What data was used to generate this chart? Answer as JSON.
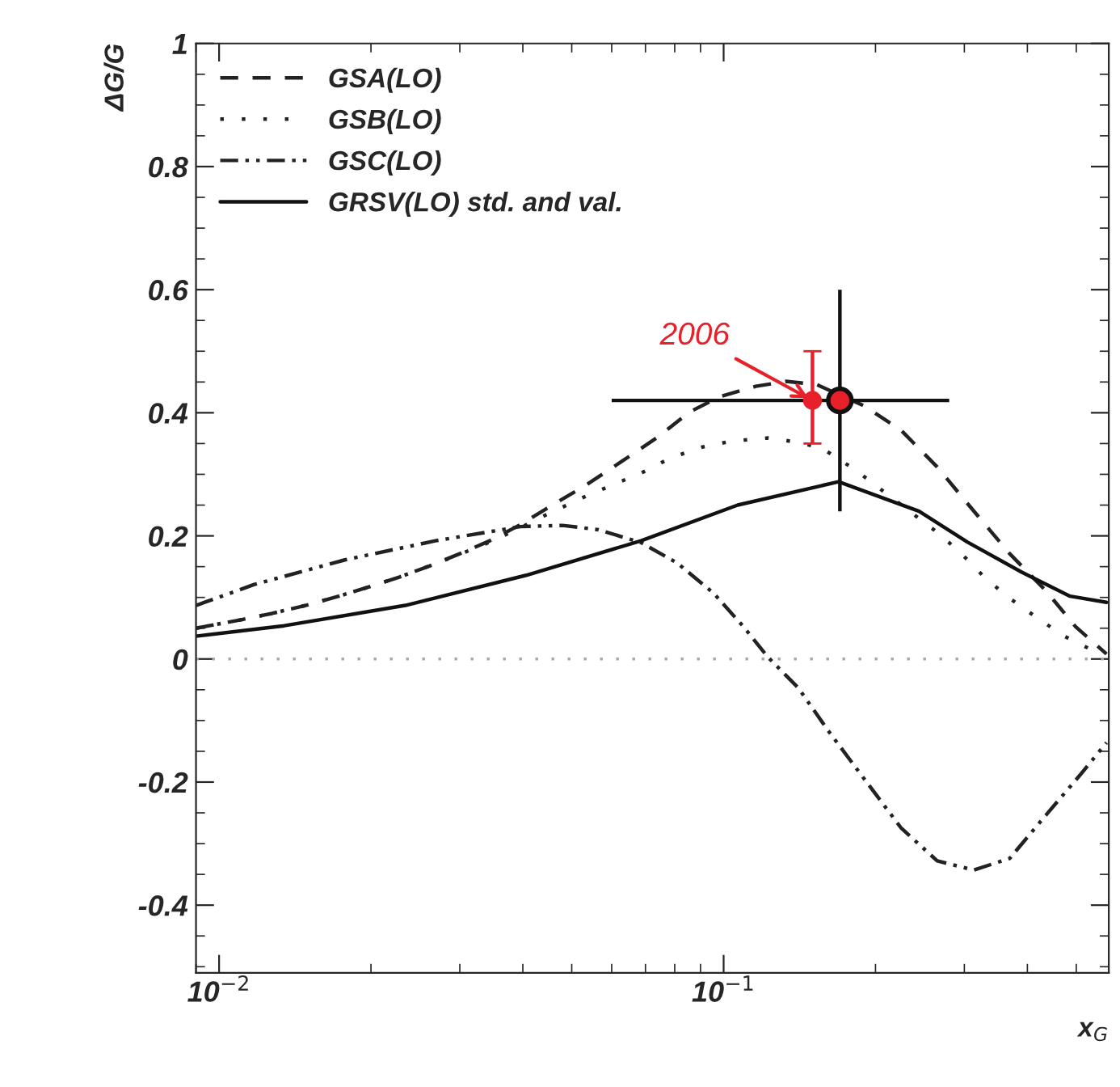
{
  "chart_data": {
    "type": "line",
    "xlabel": "x$_{G}$",
    "ylabel": "ΔG/G",
    "log": "x",
    "xlim": [
      0.009,
      0.58
    ],
    "ylim": [
      -0.51,
      1.0
    ],
    "xticks": [
      {
        "value": 0.01,
        "label": "10$^{−2}$"
      },
      {
        "value": 0.1,
        "label": "10$^{−1}$"
      }
    ],
    "yticks": [
      -0.4,
      -0.2,
      0,
      0.2,
      0.4,
      0.6,
      0.8,
      1
    ],
    "legend": "top left",
    "grid": false,
    "ref_lines": [
      {
        "axis": "y",
        "value": 0,
        "color": "#9aa8c0",
        "line_style": "dotted"
      }
    ],
    "annotations": [
      {
        "text": "2006",
        "x": 0.15,
        "y": 0.42
      }
    ],
    "series": [
      {
        "name": "GSA(LO)",
        "line_style": "dashed",
        "marker": "none",
        "color": "#222222",
        "x": [
          0.009,
          0.0111,
          0.01274,
          0.01484,
          0.01727,
          0.01982,
          0.02275,
          0.02612,
          0.03,
          0.0344,
          0.0395,
          0.0447,
          0.0535,
          0.0631,
          0.0745,
          0.0855,
          0.0982,
          0.1158,
          0.133,
          0.1527,
          0.19,
          0.2245,
          0.265,
          0.304,
          0.369,
          0.435,
          0.499,
          0.574
        ],
        "values": [
          0.05,
          0.064,
          0.074,
          0.087,
          0.102,
          0.117,
          0.133,
          0.151,
          0.171,
          0.192,
          0.218,
          0.245,
          0.283,
          0.322,
          0.362,
          0.401,
          0.426,
          0.443,
          0.451,
          0.446,
          0.411,
          0.372,
          0.312,
          0.253,
          0.171,
          0.111,
          0.052,
          0.008
        ]
      },
      {
        "name": "GSB(LO)",
        "line_style": "dotted",
        "marker": "none",
        "color": "#222222",
        "x": [
          0.009,
          0.0111,
          0.01274,
          0.01484,
          0.01727,
          0.01982,
          0.02275,
          0.02612,
          0.03,
          0.0344,
          0.0395,
          0.0447,
          0.0535,
          0.0686,
          0.0787,
          0.0904,
          0.1037,
          0.1224,
          0.1406,
          0.157,
          0.1825,
          0.261,
          0.292,
          0.326,
          0.364,
          0.418,
          0.473,
          0.542
        ],
        "values": [
          0.05,
          0.064,
          0.074,
          0.087,
          0.102,
          0.117,
          0.133,
          0.151,
          0.17,
          0.19,
          0.213,
          0.235,
          0.265,
          0.302,
          0.327,
          0.344,
          0.354,
          0.359,
          0.352,
          0.342,
          0.307,
          0.21,
          0.176,
          0.136,
          0.102,
          0.067,
          0.037,
          0.013
        ]
      },
      {
        "name": "GSC(LO)",
        "line_style": "dashdot",
        "marker": "none",
        "color": "#222222",
        "x": [
          0.009,
          0.01174,
          0.01776,
          0.02685,
          0.03951,
          0.0479,
          0.0565,
          0.0686,
          0.0809,
          0.0955,
          0.1096,
          0.1224,
          0.1406,
          0.161,
          0.19,
          0.2245,
          0.265,
          0.313,
          0.369,
          0.435,
          0.513,
          0.574
        ],
        "values": [
          0.087,
          0.121,
          0.161,
          0.192,
          0.215,
          0.217,
          0.21,
          0.189,
          0.156,
          0.107,
          0.052,
          0.003,
          -0.047,
          -0.116,
          -0.195,
          -0.274,
          -0.328,
          -0.343,
          -0.324,
          -0.254,
          -0.185,
          -0.136
        ]
      },
      {
        "name": "GRSV(LO) std. and val.",
        "line_style": "solid",
        "marker": "none",
        "color": "#111111",
        "x": [
          0.009,
          0.01346,
          0.02339,
          0.04062,
          0.0686,
          0.1066,
          0.169,
          0.244,
          0.304,
          0.39,
          0.486,
          0.574
        ],
        "values": [
          0.037,
          0.054,
          0.087,
          0.136,
          0.192,
          0.25,
          0.288,
          0.24,
          0.19,
          0.141,
          0.102,
          0.092
        ]
      },
      {
        "type": "scatter",
        "marker": "circle",
        "color": "#111111",
        "x": [
          0.17
        ],
        "values": [
          0.42
        ],
        "errors": [
          [
            0.24,
            0.6
          ]
        ],
        "xerrors": [
          [
            0.06,
            0.28
          ]
        ]
      },
      {
        "type": "scatter",
        "marker": "circle",
        "color": "#e8202a",
        "x": [
          0.15,
          0.17
        ],
        "values": [
          0.42,
          0.42
        ],
        "errors": [
          [
            0.35,
            0.5
          ],
          null
        ]
      }
    ]
  }
}
